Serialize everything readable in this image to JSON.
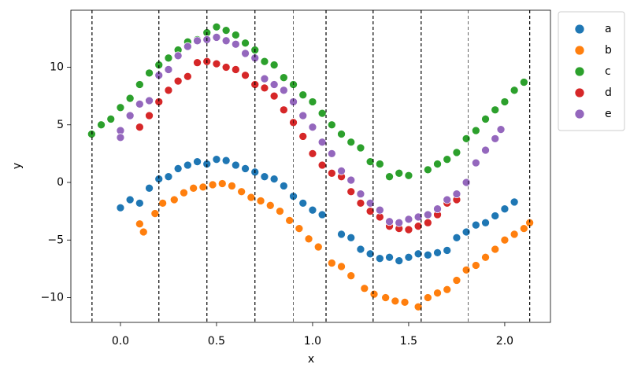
{
  "chart_data": {
    "type": "scatter",
    "xlabel": "x",
    "ylabel": "y",
    "xlim": [
      -0.258,
      2.238
    ],
    "ylim": [
      -12.15,
      14.95
    ],
    "xticks": [
      {
        "value": 0,
        "label": "0.0"
      },
      {
        "value": 0.5,
        "label": "0.5"
      },
      {
        "value": 1,
        "label": "1.0"
      },
      {
        "value": 1.5,
        "label": "1.5"
      },
      {
        "value": 2,
        "label": "2.0"
      }
    ],
    "yticks": [
      {
        "value": -10,
        "label": "−10"
      },
      {
        "value": -5,
        "label": "−5"
      },
      0,
      5,
      10
    ],
    "legend": "outside upper right",
    "vlines": [
      {
        "x": -0.148,
        "linewidth": 1.2
      },
      {
        "x": 0.2,
        "linewidth": 1.2
      },
      {
        "x": 0.45,
        "linewidth": 1.2
      },
      {
        "x": 0.7,
        "linewidth": 1.2
      },
      {
        "x": 0.9,
        "linewidth": 0.6
      },
      {
        "x": 1.07,
        "linewidth": 1.2
      },
      {
        "x": 1.315,
        "linewidth": 1.2
      },
      {
        "x": 1.565,
        "linewidth": 1.2
      },
      {
        "x": 1.81,
        "linewidth": 0.6
      },
      {
        "x": 2.13,
        "linewidth": 1.2
      }
    ],
    "series": [
      {
        "name": "a",
        "color": "#1f77b4",
        "x": [
          0.0,
          0.05,
          0.1,
          0.15,
          0.2,
          0.25,
          0.3,
          0.35,
          0.4,
          0.45,
          0.5,
          0.55,
          0.6,
          0.65,
          0.7,
          0.75,
          0.8,
          0.85,
          0.9,
          0.95,
          1.0,
          1.05,
          1.15,
          1.2,
          1.25,
          1.3,
          1.35,
          1.4,
          1.45,
          1.5,
          1.55,
          1.6,
          1.65,
          1.7,
          1.75,
          1.8,
          1.85,
          1.9,
          1.95,
          2.0,
          2.05
        ],
        "values": [
          -2.2,
          -1.5,
          -1.8,
          -0.5,
          0.3,
          0.5,
          1.2,
          1.5,
          1.8,
          1.6,
          2.0,
          1.9,
          1.5,
          1.2,
          0.9,
          0.5,
          0.3,
          -0.3,
          -1.2,
          -1.8,
          -2.4,
          -2.8,
          -4.5,
          -4.8,
          -5.8,
          -6.2,
          -6.6,
          -6.5,
          -6.8,
          -6.5,
          -6.2,
          -6.3,
          -6.1,
          -5.9,
          -4.8,
          -4.3,
          -3.7,
          -3.5,
          -2.9,
          -2.3,
          -1.7
        ]
      },
      {
        "name": "b",
        "color": "#ff7f0e",
        "x": [
          0.1,
          0.12,
          0.18,
          0.22,
          0.28,
          0.33,
          0.38,
          0.43,
          0.48,
          0.53,
          0.58,
          0.63,
          0.68,
          0.73,
          0.78,
          0.83,
          0.88,
          0.93,
          0.98,
          1.03,
          1.1,
          1.15,
          1.2,
          1.27,
          1.32,
          1.38,
          1.43,
          1.48,
          1.55,
          1.6,
          1.65,
          1.7,
          1.75,
          1.8,
          1.85,
          1.9,
          1.95,
          2.0,
          2.05,
          2.1,
          2.13
        ],
        "values": [
          -3.6,
          -4.3,
          -2.7,
          -1.8,
          -1.5,
          -0.9,
          -0.5,
          -0.4,
          -0.2,
          -0.1,
          -0.3,
          -0.8,
          -1.3,
          -1.6,
          -2.0,
          -2.5,
          -3.3,
          -4.0,
          -4.9,
          -5.6,
          -7.0,
          -7.3,
          -8.1,
          -9.2,
          -9.7,
          -10.0,
          -10.3,
          -10.4,
          -10.8,
          -10.0,
          -9.6,
          -9.3,
          -8.5,
          -7.6,
          -7.2,
          -6.5,
          -5.8,
          -5.0,
          -4.5,
          -4.0,
          -3.5
        ]
      },
      {
        "name": "c",
        "color": "#2ca02c",
        "x": [
          -0.15,
          -0.1,
          -0.05,
          0.0,
          0.05,
          0.1,
          0.15,
          0.2,
          0.25,
          0.3,
          0.35,
          0.4,
          0.45,
          0.5,
          0.55,
          0.6,
          0.65,
          0.7,
          0.75,
          0.8,
          0.85,
          0.9,
          0.95,
          1.0,
          1.05,
          1.1,
          1.15,
          1.2,
          1.25,
          1.3,
          1.35,
          1.4,
          1.45,
          1.5,
          1.6,
          1.65,
          1.7,
          1.75,
          1.8,
          1.85,
          1.9,
          1.95,
          2.0,
          2.05,
          2.1
        ],
        "values": [
          4.2,
          5.0,
          5.5,
          6.5,
          7.3,
          8.5,
          9.5,
          10.2,
          10.8,
          11.5,
          12.2,
          12.4,
          13.0,
          13.5,
          13.2,
          12.8,
          12.1,
          11.5,
          10.5,
          10.2,
          9.1,
          8.5,
          7.6,
          7.0,
          6.0,
          5.0,
          4.2,
          3.5,
          3.0,
          1.8,
          1.6,
          0.5,
          0.8,
          0.6,
          1.1,
          1.6,
          2.0,
          2.6,
          3.8,
          4.5,
          5.5,
          6.3,
          7.0,
          8.0,
          8.7
        ]
      },
      {
        "name": "d",
        "color": "#d62728",
        "x": [
          0.1,
          0.15,
          0.2,
          0.25,
          0.3,
          0.35,
          0.4,
          0.45,
          0.5,
          0.55,
          0.6,
          0.65,
          0.7,
          0.75,
          0.8,
          0.85,
          0.9,
          0.95,
          1.0,
          1.05,
          1.1,
          1.15,
          1.2,
          1.25,
          1.3,
          1.35,
          1.4,
          1.45,
          1.5,
          1.55,
          1.6,
          1.65,
          1.7,
          1.75
        ],
        "values": [
          4.8,
          5.8,
          7.0,
          8.0,
          8.8,
          9.2,
          10.4,
          10.5,
          10.3,
          10.0,
          9.8,
          9.3,
          8.5,
          8.2,
          7.5,
          6.3,
          5.2,
          4.0,
          2.5,
          1.5,
          0.8,
          0.5,
          -0.8,
          -1.8,
          -2.5,
          -3.0,
          -3.8,
          -4.0,
          -4.1,
          -3.8,
          -3.5,
          -2.8,
          -1.8,
          -1.5
        ]
      },
      {
        "name": "e",
        "color": "#9467bd",
        "x": [
          0.0,
          0.0,
          0.05,
          0.1,
          0.15,
          0.2,
          0.25,
          0.3,
          0.35,
          0.4,
          0.45,
          0.5,
          0.55,
          0.6,
          0.65,
          0.7,
          0.75,
          0.8,
          0.85,
          0.9,
          0.95,
          1.0,
          1.05,
          1.1,
          1.15,
          1.2,
          1.25,
          1.3,
          1.35,
          1.4,
          1.45,
          1.5,
          1.55,
          1.6,
          1.65,
          1.7,
          1.75,
          1.8,
          1.85,
          1.9,
          1.95,
          1.98
        ],
        "values": [
          4.5,
          3.9,
          5.8,
          6.8,
          7.1,
          9.3,
          9.8,
          11.0,
          11.8,
          12.3,
          12.4,
          12.6,
          12.3,
          12.0,
          11.2,
          10.8,
          9.0,
          8.5,
          8.0,
          7.0,
          5.8,
          4.8,
          3.5,
          2.5,
          1.0,
          0.2,
          -1.0,
          -1.8,
          -2.4,
          -3.4,
          -3.5,
          -3.2,
          -3.0,
          -2.8,
          -2.3,
          -1.5,
          -1.0,
          0.0,
          1.7,
          2.8,
          3.8,
          4.6
        ]
      }
    ]
  }
}
